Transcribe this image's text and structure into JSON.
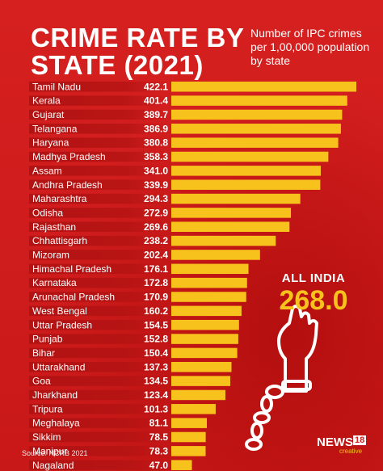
{
  "header": {
    "title": "CRIME RATE BY\nSTATE (2021)",
    "subtitle": "Number of IPC crimes per 1,00,000 population by state"
  },
  "footer": {
    "source": "Source: NCRB 2021"
  },
  "badge": {
    "label": "ALL INDIA",
    "value": "268.0"
  },
  "logo": {
    "name": "NEWS",
    "number": "18",
    "suffix": "creative"
  },
  "colors": {
    "background": "#d21e1e",
    "bar": "#f7c21c",
    "label_row": "#b51313",
    "label_row_fade": "#d21e1e",
    "text": "#ffffff",
    "accent": "#f7c21c"
  },
  "chart_data": {
    "type": "bar",
    "orientation": "horizontal",
    "title": "CRIME RATE BY STATE (2021)",
    "categories": [
      "Tamil Nadu",
      "Kerala",
      "Gujarat",
      "Telangana",
      "Haryana",
      "Madhya Pradesh",
      "Assam",
      "Andhra Pradesh",
      "Maharashtra",
      "Odisha",
      "Rajasthan",
      "Chhattisgarh",
      "Mizoram",
      "Himachal Pradesh",
      "Karnataka",
      "Arunachal Pradesh",
      "West Bengal",
      "Uttar Pradesh",
      "Punjab",
      "Bihar",
      "Uttarakhand",
      "Goa",
      "Jharkhand",
      "Tripura",
      "Meghalaya",
      "Sikkim",
      "Manipur",
      "Nagaland"
    ],
    "values": [
      422.1,
      401.4,
      389.7,
      386.9,
      380.8,
      358.3,
      341.0,
      339.9,
      294.3,
      272.9,
      269.6,
      238.2,
      202.4,
      176.1,
      172.8,
      170.9,
      160.2,
      154.5,
      152.8,
      150.4,
      137.3,
      134.5,
      123.4,
      101.3,
      81.1,
      78.5,
      78.3,
      47.0
    ],
    "value_labels": [
      "422.1",
      "401.4",
      "389.7",
      "386.9",
      "380.8",
      "358.3",
      "341.0",
      "339.9",
      "294.3",
      "272.9",
      "269.6",
      "238.2",
      "202.4",
      "176.1",
      "172.8",
      "170.9",
      "160.2",
      "154.5",
      "152.8",
      "150.4",
      "137.3",
      "134.5",
      "123.4",
      "101.3",
      "81.1",
      "78.5",
      "78.3",
      "47.0"
    ],
    "xlim": [
      0,
      422.1
    ],
    "grid": false,
    "legend": "none"
  }
}
